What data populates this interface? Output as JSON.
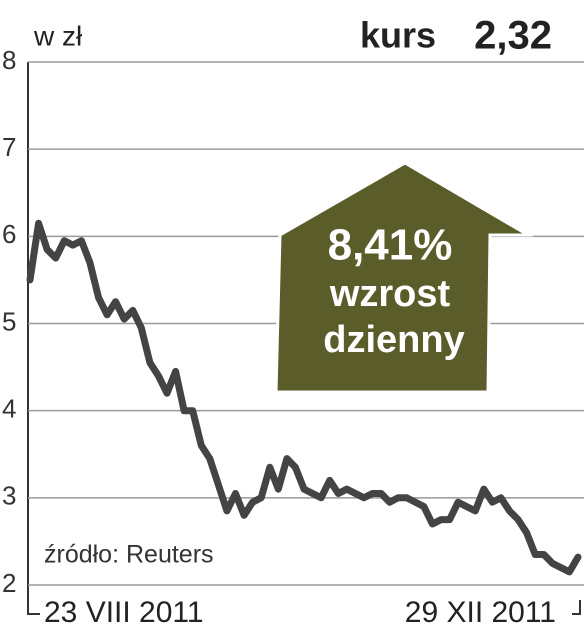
{
  "chart_data": {
    "type": "line",
    "unit_label": "w zł",
    "price_label": "kurs",
    "price": "2,32",
    "annotation": [
      "8,41%",
      "wzrost",
      "dzienny"
    ],
    "source": "źródło: Reuters",
    "categories": [
      "23 VIII 2011",
      null,
      null,
      null,
      null,
      null,
      null,
      null,
      null,
      null,
      null,
      null,
      null,
      null,
      null,
      null,
      null,
      null,
      null,
      null,
      null,
      null,
      null,
      null,
      null,
      null,
      null,
      null,
      null,
      null,
      null,
      null,
      null,
      null,
      null,
      null,
      null,
      null,
      null,
      null,
      null,
      null,
      null,
      null,
      null,
      null,
      null,
      null,
      null,
      null,
      null,
      null,
      null,
      null,
      null,
      null,
      null,
      null,
      null,
      null,
      null,
      null,
      null,
      null,
      "29 XII 2011"
    ],
    "series": [
      {
        "color": "#444444",
        "values": [
          5.5,
          6.15,
          5.85,
          5.75,
          5.95,
          5.9,
          5.95,
          5.7,
          5.3,
          5.1,
          5.25,
          5.05,
          5.15,
          4.95,
          4.55,
          4.4,
          4.2,
          4.45,
          4.0,
          4.0,
          3.6,
          3.45,
          3.15,
          2.85,
          3.05,
          2.8,
          2.95,
          3.0,
          3.35,
          3.1,
          3.45,
          3.35,
          3.1,
          3.05,
          3.0,
          3.2,
          3.05,
          3.1,
          3.05,
          3.0,
          3.05,
          3.05,
          2.95,
          3.0,
          3.0,
          2.95,
          2.9,
          2.7,
          2.75,
          2.75,
          2.95,
          2.9,
          2.85,
          3.1,
          2.95,
          3.0,
          2.85,
          2.75,
          2.6,
          2.35,
          2.35,
          2.25,
          2.2,
          2.15,
          2.32
        ]
      }
    ],
    "ylim": [
      2,
      8
    ],
    "yticks": [
      2,
      3,
      4,
      5,
      6,
      7,
      8
    ],
    "grid": true,
    "annotation_color": "#5a5d2a"
  }
}
